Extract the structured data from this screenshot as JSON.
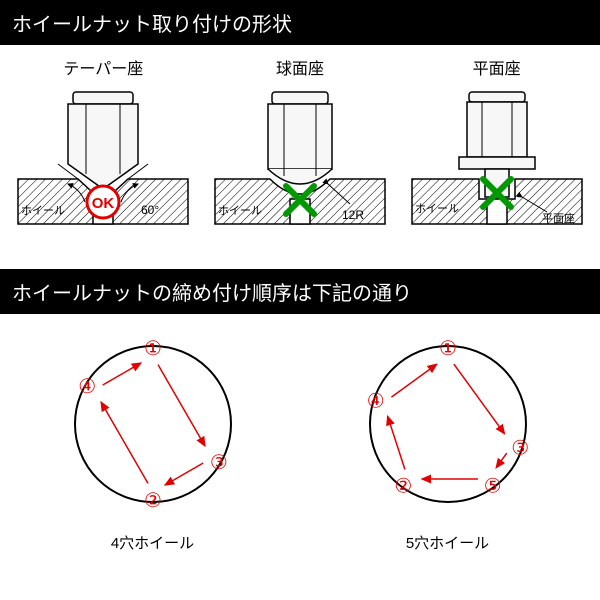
{
  "header1": "ホイールナット取り付けの形状",
  "header2": "ホイールナットの締め付け順序は下記の通り",
  "header_bg": "#000000",
  "header_fg": "#ffffff",
  "nut_types": [
    {
      "label": "テーパー座",
      "sublabel": "ホイール",
      "angle_label": "60°",
      "mark": "OK",
      "mark_color": "#e20000",
      "seat": "taper"
    },
    {
      "label": "球面座",
      "sublabel": "ホイール",
      "angle_label": "12R",
      "mark": "X",
      "mark_color": "#009900",
      "seat": "sphere"
    },
    {
      "label": "平面座",
      "sublabel": "ホイール",
      "angle_label": "平面座",
      "mark": "X",
      "mark_color": "#009900",
      "seat": "flat"
    }
  ],
  "sequences": [
    {
      "label": "4穴ホイール",
      "points": 4,
      "number_color": "#e20000",
      "arrow_color": "#e20000",
      "circle_color": "#000000",
      "numbers": [
        "①",
        "②",
        "③",
        "④"
      ],
      "angles_deg": [
        270,
        90,
        30,
        210
      ],
      "order": [
        0,
        2,
        1,
        3,
        0
      ]
    },
    {
      "label": "5穴ホイール",
      "points": 5,
      "number_color": "#e20000",
      "arrow_color": "#e20000",
      "circle_color": "#000000",
      "numbers": [
        "①",
        "②",
        "③",
        "④",
        "⑤"
      ],
      "angles_deg": [
        270,
        126,
        18,
        198,
        54
      ],
      "order": [
        0,
        2,
        4,
        1,
        3,
        0
      ]
    }
  ],
  "nut_style": {
    "body_fill": "#f7f7f7",
    "body_stroke": "#000000",
    "stroke_w": 1.5,
    "wheel_hatch": "#000000",
    "wheel_fill": "#ffffff"
  }
}
